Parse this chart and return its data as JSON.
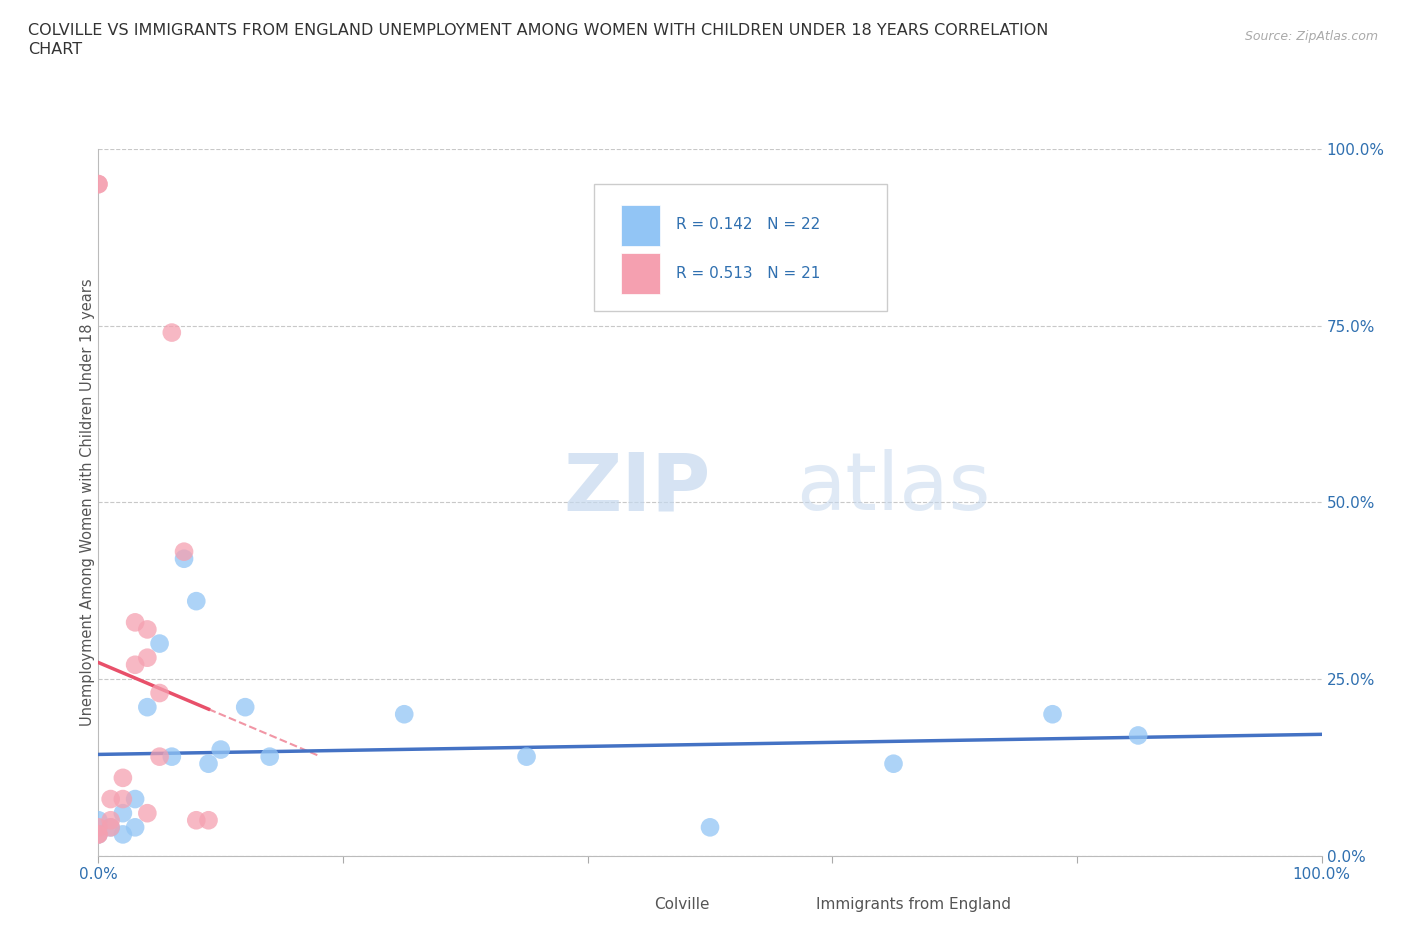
{
  "title_line1": "COLVILLE VS IMMIGRANTS FROM ENGLAND UNEMPLOYMENT AMONG WOMEN WITH CHILDREN UNDER 18 YEARS CORRELATION",
  "title_line2": "CHART",
  "source": "Source: ZipAtlas.com",
  "ylabel": "Unemployment Among Women with Children Under 18 years",
  "ytick_vals": [
    0.0,
    0.25,
    0.5,
    0.75,
    1.0
  ],
  "ytick_labels": [
    "0.0%",
    "25.0%",
    "50.0%",
    "75.0%",
    "100.0%"
  ],
  "xtick_vals": [
    0.0,
    0.2,
    0.4,
    0.6,
    0.8,
    1.0
  ],
  "legend_colville_R": "0.142",
  "legend_colville_N": "22",
  "legend_england_R": "0.513",
  "legend_england_N": "21",
  "colville_color": "#92C5F5",
  "england_color": "#F5A0B0",
  "colville_line_color": "#4472C4",
  "england_line_color": "#E8506A",
  "watermark_zip": "ZIP",
  "watermark_atlas": "atlas",
  "colville_x": [
    0.0,
    0.0,
    0.01,
    0.02,
    0.02,
    0.03,
    0.03,
    0.04,
    0.05,
    0.06,
    0.07,
    0.08,
    0.09,
    0.1,
    0.12,
    0.14,
    0.25,
    0.35,
    0.5,
    0.65,
    0.78,
    0.85
  ],
  "colville_y": [
    0.03,
    0.05,
    0.04,
    0.03,
    0.06,
    0.04,
    0.08,
    0.21,
    0.3,
    0.14,
    0.42,
    0.36,
    0.13,
    0.15,
    0.21,
    0.14,
    0.2,
    0.14,
    0.04,
    0.13,
    0.2,
    0.17
  ],
  "england_x": [
    0.0,
    0.0,
    0.0,
    0.0,
    0.0,
    0.01,
    0.01,
    0.01,
    0.02,
    0.02,
    0.03,
    0.03,
    0.04,
    0.04,
    0.04,
    0.05,
    0.05,
    0.06,
    0.07,
    0.08,
    0.09
  ],
  "england_y": [
    0.03,
    0.03,
    0.04,
    0.95,
    0.95,
    0.04,
    0.05,
    0.08,
    0.08,
    0.11,
    0.27,
    0.33,
    0.06,
    0.28,
    0.32,
    0.14,
    0.23,
    0.74,
    0.43,
    0.05,
    0.05
  ]
}
